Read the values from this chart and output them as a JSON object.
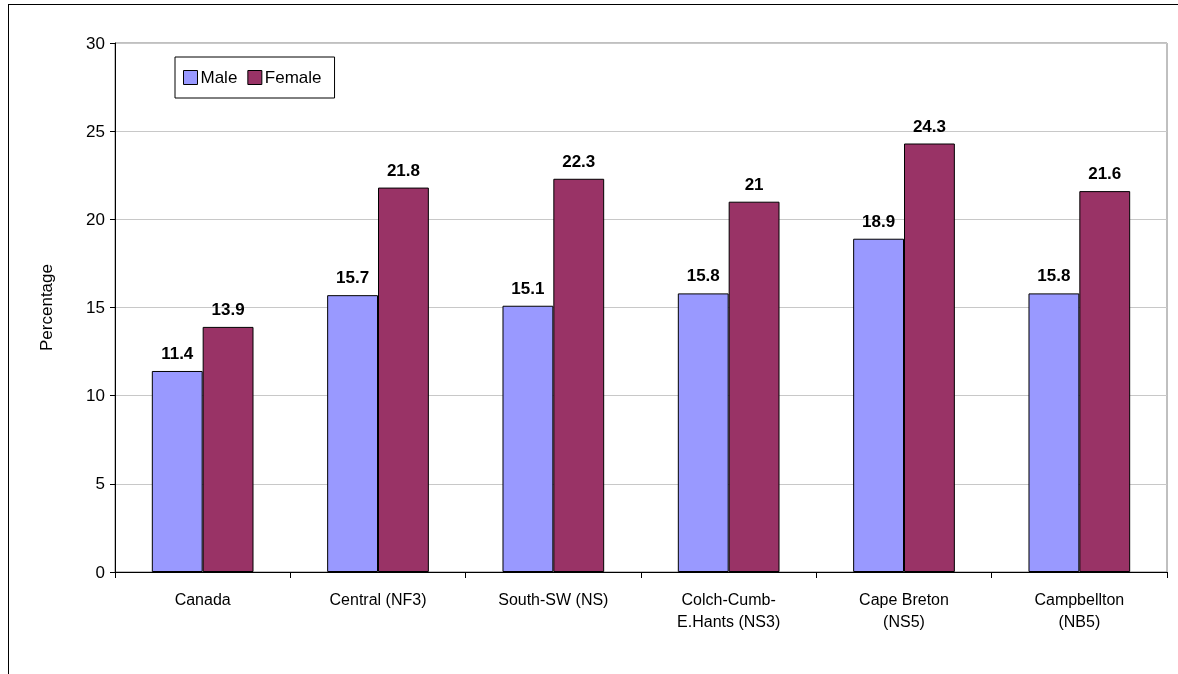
{
  "chart_data": {
    "type": "bar",
    "ylabel": "Percentage",
    "categories": [
      "Canada",
      "Central (NF3)",
      "South-SW (NS)",
      "Colch-Cumb-E.Hants (NS3)",
      "Cape Breton (NS5)",
      "Campbellton (NB5)"
    ],
    "series": [
      {
        "name": "Male",
        "color": "#9999ff",
        "values": [
          11.4,
          15.7,
          15.1,
          15.8,
          18.9,
          15.8
        ]
      },
      {
        "name": "Female",
        "color": "#993366",
        "values": [
          13.9,
          21.8,
          22.3,
          21,
          24.3,
          21.6
        ]
      }
    ],
    "ylim": [
      0,
      30
    ],
    "yticks": [
      0,
      5,
      10,
      15,
      20,
      25,
      30
    ],
    "grid": "y",
    "legend": "top left",
    "data_labels": true
  }
}
